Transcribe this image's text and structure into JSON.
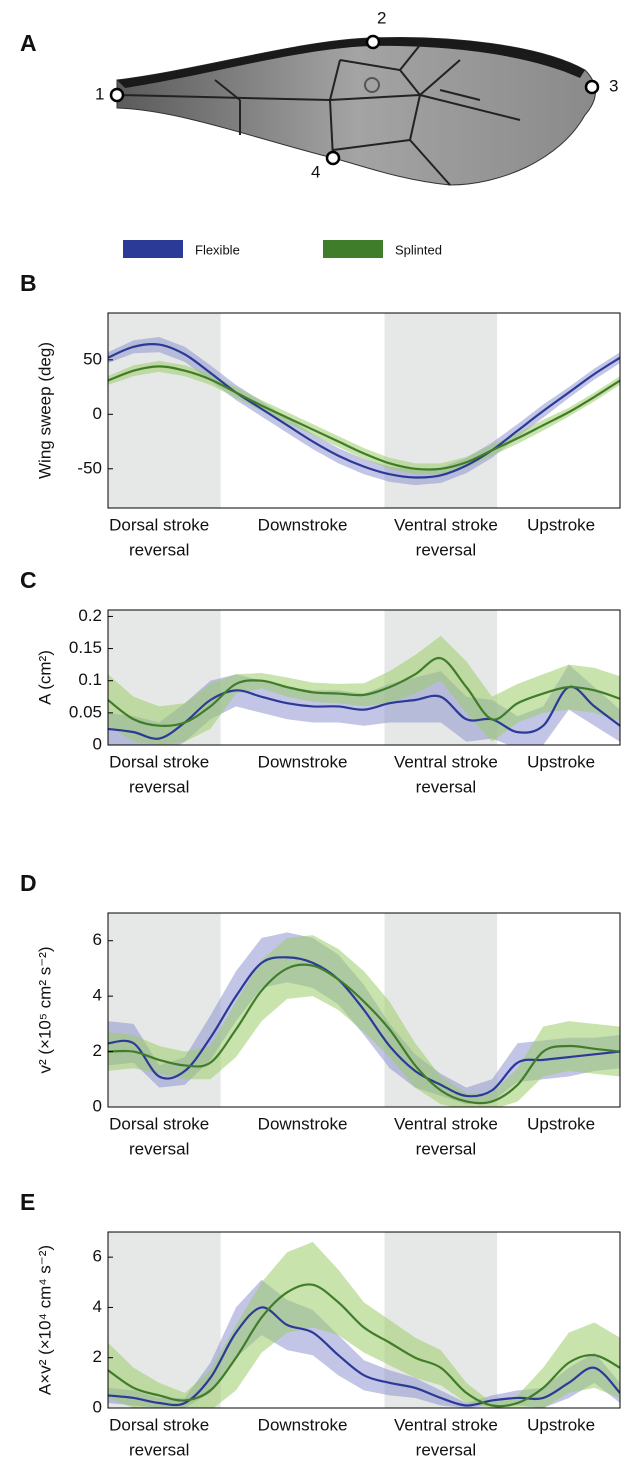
{
  "wing": {
    "panel": "A",
    "landmarks": [
      "1",
      "2",
      "3",
      "4"
    ]
  },
  "chart_data": [
    {
      "type": "line",
      "panel": "B",
      "y_label": "Wing sweep (deg)",
      "x_labels": [
        [
          "Dorsal stroke",
          "reversal"
        ],
        [
          "Downstroke"
        ],
        [
          "Ventral stroke",
          "reversal"
        ],
        [
          "Upstroke"
        ]
      ],
      "ylim": [
        -86,
        93
      ],
      "yticks": [
        -50,
        0,
        50
      ],
      "series": [
        {
          "name": "Flexible",
          "color": "#2b3a97",
          "band_color": "#8f95d0",
          "values": [
            52,
            62,
            64,
            55,
            38,
            20,
            5,
            -10,
            -25,
            -38,
            -48,
            -55,
            -58,
            -56,
            -47,
            -33,
            -15,
            3,
            20,
            37,
            52
          ],
          "error": [
            5,
            6,
            7,
            7,
            7,
            7,
            7,
            7,
            7,
            7,
            7,
            7,
            7,
            7,
            7,
            7,
            6,
            6,
            5,
            5,
            5
          ]
        },
        {
          "name": "Splinted",
          "color": "#3f7d2a",
          "band_color": "#9dcc6a",
          "values": [
            31,
            40,
            44,
            40,
            32,
            20,
            8,
            -3,
            -14,
            -25,
            -36,
            -45,
            -50,
            -50,
            -44,
            -33,
            -22,
            -10,
            2,
            16,
            31
          ],
          "error": [
            4,
            5,
            5,
            5,
            5,
            5,
            5,
            5,
            5,
            5,
            5,
            5,
            5,
            5,
            5,
            5,
            5,
            5,
            4,
            4,
            4
          ]
        }
      ]
    },
    {
      "type": "line",
      "panel": "C",
      "y_label": "A (cm²)",
      "x_labels": [
        [
          "Dorsal stroke",
          "reversal"
        ],
        [
          "Downstroke"
        ],
        [
          "Ventral stroke",
          "reversal"
        ],
        [
          "Upstroke"
        ]
      ],
      "ylim": [
        0,
        0.21
      ],
      "yticks": [
        0,
        0.05,
        0.1,
        0.15,
        0.2
      ],
      "series": [
        {
          "color": "#2b3a97",
          "band_color": "#8f95d0",
          "values": [
            0.025,
            0.02,
            0.01,
            0.035,
            0.07,
            0.085,
            0.075,
            0.065,
            0.06,
            0.06,
            0.055,
            0.065,
            0.07,
            0.075,
            0.04,
            0.04,
            0.02,
            0.03,
            0.09,
            0.06,
            0.03
          ],
          "error": [
            0.025,
            0.025,
            0.025,
            0.03,
            0.03,
            0.025,
            0.025,
            0.025,
            0.025,
            0.025,
            0.025,
            0.03,
            0.035,
            0.04,
            0.035,
            0.03,
            0.025,
            0.03,
            0.035,
            0.03,
            0.025
          ]
        },
        {
          "color": "#3f7d2a",
          "band_color": "#9dcc6a",
          "values": [
            0.07,
            0.04,
            0.03,
            0.035,
            0.06,
            0.095,
            0.1,
            0.09,
            0.082,
            0.08,
            0.078,
            0.09,
            0.11,
            0.135,
            0.09,
            0.04,
            0.065,
            0.08,
            0.09,
            0.085,
            0.072
          ],
          "error": [
            0.04,
            0.035,
            0.03,
            0.03,
            0.035,
            0.015,
            0.012,
            0.015,
            0.015,
            0.015,
            0.018,
            0.025,
            0.03,
            0.035,
            0.04,
            0.035,
            0.03,
            0.03,
            0.035,
            0.035,
            0.035
          ]
        }
      ]
    },
    {
      "type": "line",
      "panel": "D",
      "y_label": "v² (×10⁵ cm² s⁻²)",
      "x_labels": [
        [
          "Dorsal stroke",
          "reversal"
        ],
        [
          "Downstroke"
        ],
        [
          "Ventral stroke",
          "reversal"
        ],
        [
          "Upstroke"
        ]
      ],
      "ylim": [
        0,
        7
      ],
      "yticks": [
        0,
        2,
        4,
        6
      ],
      "series": [
        {
          "color": "#2b3a97",
          "band_color": "#8f95d0",
          "values": [
            2.3,
            2.3,
            1.1,
            1.3,
            2.5,
            4.0,
            5.2,
            5.4,
            5.2,
            4.6,
            3.5,
            2.2,
            1.3,
            0.8,
            0.4,
            0.6,
            1.6,
            1.7,
            1.8,
            1.9,
            2.0
          ],
          "error": [
            0.8,
            0.7,
            0.4,
            0.5,
            0.8,
            0.9,
            0.9,
            0.9,
            0.9,
            0.9,
            0.9,
            0.8,
            0.6,
            0.4,
            0.3,
            0.4,
            0.7,
            0.7,
            0.7,
            0.6,
            0.6
          ]
        },
        {
          "color": "#3f7d2a",
          "band_color": "#9dcc6a",
          "values": [
            2.0,
            2.0,
            1.7,
            1.5,
            1.6,
            2.8,
            4.2,
            5.0,
            5.1,
            4.6,
            3.8,
            2.8,
            1.5,
            0.6,
            0.2,
            0.2,
            0.8,
            2.0,
            2.2,
            2.1,
            2.0
          ],
          "error": [
            0.7,
            0.6,
            0.5,
            0.5,
            0.6,
            1.0,
            1.1,
            1.1,
            1.1,
            1.1,
            1.1,
            1.0,
            0.8,
            0.5,
            0.3,
            0.3,
            0.6,
            0.9,
            0.9,
            0.9,
            0.9
          ]
        }
      ]
    },
    {
      "type": "line",
      "panel": "E",
      "y_label": "A×v² (×10⁴ cm⁴ s⁻²)",
      "x_labels": [
        [
          "Dorsal stroke",
          "reversal"
        ],
        [
          "Downstroke"
        ],
        [
          "Ventral stroke",
          "reversal"
        ],
        [
          "Upstroke"
        ]
      ],
      "ylim": [
        0,
        7
      ],
      "yticks": [
        0,
        2,
        4,
        6
      ],
      "series": [
        {
          "color": "#2b3a97",
          "band_color": "#8f95d0",
          "values": [
            0.5,
            0.4,
            0.2,
            0.2,
            1.2,
            3.0,
            4.0,
            3.3,
            3.0,
            2.1,
            1.3,
            1.0,
            0.8,
            0.4,
            0.1,
            0.3,
            0.4,
            0.4,
            1.0,
            1.6,
            0.6
          ],
          "error": [
            0.3,
            0.3,
            0.2,
            0.2,
            0.6,
            1.0,
            1.1,
            1.0,
            0.9,
            0.8,
            0.6,
            0.5,
            0.4,
            0.3,
            0.1,
            0.2,
            0.3,
            0.4,
            0.6,
            0.6,
            0.4
          ]
        },
        {
          "color": "#3f7d2a",
          "band_color": "#9dcc6a",
          "values": [
            1.5,
            0.8,
            0.5,
            0.3,
            0.7,
            2.0,
            3.6,
            4.6,
            4.9,
            4.2,
            3.2,
            2.6,
            2.0,
            1.6,
            0.6,
            0.1,
            0.2,
            0.8,
            1.8,
            2.1,
            1.6
          ],
          "error": [
            1.1,
            0.8,
            0.5,
            0.3,
            0.8,
            1.3,
            1.4,
            1.6,
            1.7,
            1.3,
            1.0,
            0.9,
            0.8,
            0.7,
            0.4,
            0.1,
            0.3,
            0.8,
            1.2,
            1.3,
            1.2
          ]
        }
      ]
    }
  ]
}
